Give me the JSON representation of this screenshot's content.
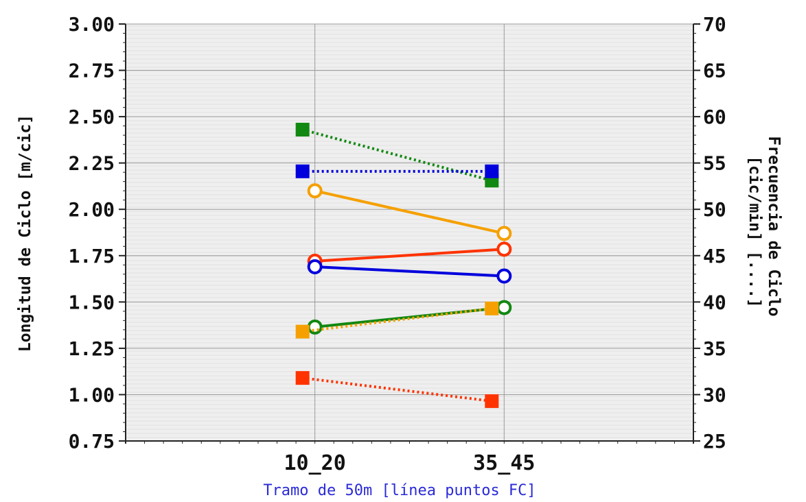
{
  "chart_data": {
    "type": "line",
    "categories": [
      "10_20",
      "35_45"
    ],
    "xlabel": "Tramo de 50m [línea puntos FC]",
    "ylabel_left": "Longitud de Ciclo [m/cic]",
    "ylabel_right_line1": "Frecuencia de Ciclo",
    "ylabel_right_line2": "[cic/min] [....]",
    "ylim_left": [
      0.75,
      3.0
    ],
    "yticks_left": [
      "3.00",
      "2.75",
      "2.50",
      "2.25",
      "2.00",
      "1.75",
      "1.50",
      "1.25",
      "1.00",
      "0.75"
    ],
    "ylim_right": [
      25,
      70
    ],
    "yticks_right": [
      "70",
      "65",
      "60",
      "55",
      "50",
      "45",
      "40",
      "35",
      "30",
      "25"
    ],
    "grid": true,
    "series": [
      {
        "axis": "left",
        "marker": "circle",
        "style": "solid",
        "color": "#f5a000",
        "values": [
          2.1,
          1.87
        ]
      },
      {
        "axis": "left",
        "marker": "circle",
        "style": "solid",
        "color": "#ff3300",
        "values": [
          1.72,
          1.785
        ]
      },
      {
        "axis": "left",
        "marker": "circle",
        "style": "solid",
        "color": "#0000dd",
        "values": [
          1.69,
          1.64
        ]
      },
      {
        "axis": "left",
        "marker": "circle",
        "style": "solid",
        "color": "#118811",
        "values": [
          1.365,
          1.47
        ]
      },
      {
        "axis": "right",
        "marker": "square",
        "style": "dotted",
        "color": "#118811",
        "values": [
          58.6,
          53.1
        ]
      },
      {
        "axis": "right",
        "marker": "square",
        "style": "dotted",
        "color": "#0000dd",
        "values": [
          54.1,
          54.1
        ]
      },
      {
        "axis": "right",
        "marker": "square",
        "style": "dotted",
        "color": "#f5a000",
        "values": [
          36.8,
          39.3
        ]
      },
      {
        "axis": "right",
        "marker": "square",
        "style": "dotted",
        "color": "#ff3300",
        "values": [
          31.8,
          29.3
        ]
      }
    ]
  }
}
